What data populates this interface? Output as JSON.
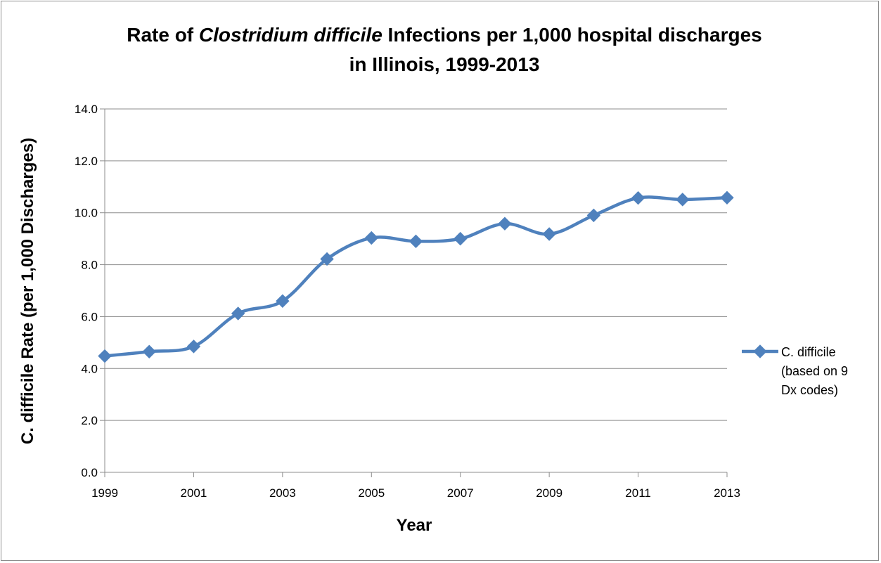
{
  "chart_data": {
    "type": "line",
    "title_parts": [
      {
        "text": "Rate of ",
        "italic": false
      },
      {
        "text": "Clostridium difficile",
        "italic": true
      },
      {
        "text": " Infections per 1,000 hospital discharges",
        "italic": false
      }
    ],
    "title_line2": "in Illinois, 1999-2013",
    "xlabel": "Year",
    "ylabel": "C. difficile Rate (per 1,000 Discharges)",
    "x": [
      1999,
      2000,
      2001,
      2002,
      2003,
      2004,
      2005,
      2006,
      2007,
      2008,
      2009,
      2010,
      2011,
      2012,
      2013
    ],
    "xticks": [
      "1999",
      "2001",
      "2003",
      "2005",
      "2007",
      "2009",
      "2011",
      "2013"
    ],
    "yticks": [
      "0.0",
      "2.0",
      "4.0",
      "6.0",
      "8.0",
      "10.0",
      "12.0",
      "14.0"
    ],
    "ylim": [
      0,
      14
    ],
    "xlim": [
      1999,
      2013
    ],
    "grid": "horizontal",
    "legend_position": "right",
    "series": [
      {
        "name": "C. difficile (based on 9 Dx codes)",
        "legend_lines": [
          "C. difficile",
          "(based on 9",
          "Dx codes)"
        ],
        "color": "#4f81bd",
        "marker": "diamond",
        "values": [
          4.48,
          4.65,
          4.85,
          6.12,
          6.6,
          8.22,
          9.03,
          8.9,
          9.0,
          9.58,
          9.18,
          9.9,
          10.57,
          10.51,
          10.58
        ]
      }
    ]
  }
}
